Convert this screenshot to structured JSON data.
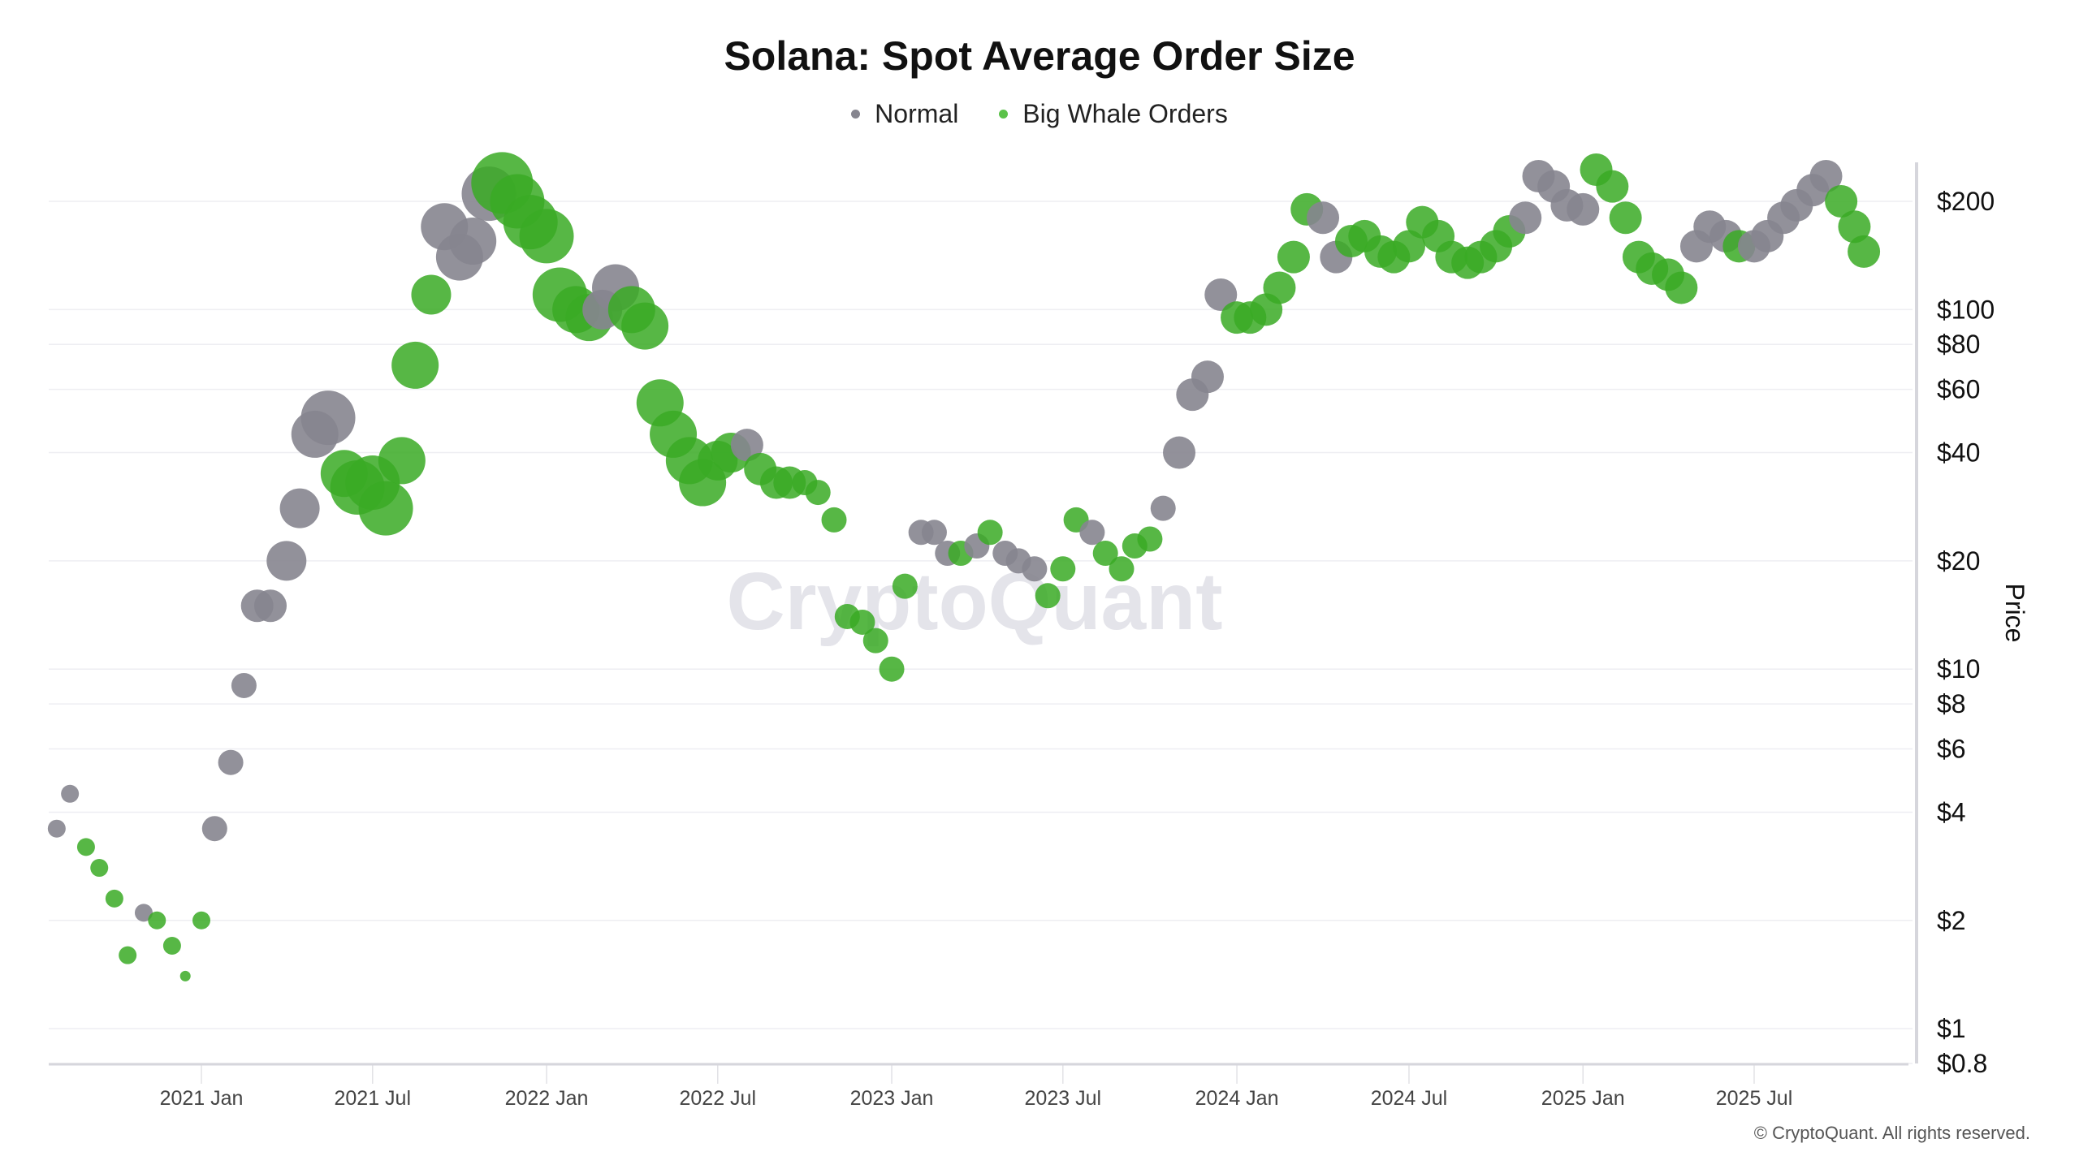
{
  "chart_data": {
    "type": "scatter",
    "title": "Solana: Spot Average Order Size",
    "ylabel": "Price",
    "xlabel": "",
    "yscale": "log",
    "ylim": [
      0.8,
      260
    ],
    "xlim": [
      "2020-07-20",
      "2025-11-05"
    ],
    "grid": true,
    "legend_placement": "top-center",
    "y_ticks": [
      {
        "value": 200,
        "label": "$200"
      },
      {
        "value": 100,
        "label": "$100"
      },
      {
        "value": 80,
        "label": "$80"
      },
      {
        "value": 60,
        "label": "$60"
      },
      {
        "value": 40,
        "label": "$40"
      },
      {
        "value": 20,
        "label": "$20"
      },
      {
        "value": 10,
        "label": "$10"
      },
      {
        "value": 8,
        "label": "$8"
      },
      {
        "value": 6,
        "label": "$6"
      },
      {
        "value": 4,
        "label": "$4"
      },
      {
        "value": 2,
        "label": "$2"
      },
      {
        "value": 1,
        "label": "$1"
      },
      {
        "value": 0.8,
        "label": "$0.8"
      }
    ],
    "x_ticks": [
      {
        "value": "2021-01-01",
        "label": "2021 Jan"
      },
      {
        "value": "2021-07-01",
        "label": "2021 Jul"
      },
      {
        "value": "2022-01-01",
        "label": "2022 Jan"
      },
      {
        "value": "2022-07-01",
        "label": "2022 Jul"
      },
      {
        "value": "2023-01-01",
        "label": "2023 Jan"
      },
      {
        "value": "2023-07-01",
        "label": "2023 Jul"
      },
      {
        "value": "2024-01-01",
        "label": "2024 Jan"
      },
      {
        "value": "2024-07-01",
        "label": "2024 Jul"
      },
      {
        "value": "2025-01-01",
        "label": "2025 Jan"
      },
      {
        "value": "2025-07-01",
        "label": "2025 Jul"
      }
    ],
    "series": [
      {
        "name": "Normal",
        "key": "N",
        "color": "#86858f"
      },
      {
        "name": "Big Whale Orders",
        "key": "W",
        "color": "#3aaa25"
      }
    ],
    "points_columns": [
      "date",
      "price",
      "category",
      "relative_order_size"
    ],
    "points": [
      [
        "2020-08-01",
        3.6,
        "N",
        2
      ],
      [
        "2020-08-15",
        4.5,
        "N",
        2
      ],
      [
        "2020-09-01",
        3.2,
        "W",
        2
      ],
      [
        "2020-09-15",
        2.8,
        "W",
        2
      ],
      [
        "2020-10-01",
        2.3,
        "W",
        2
      ],
      [
        "2020-10-15",
        1.6,
        "W",
        2
      ],
      [
        "2020-11-01",
        2.1,
        "N",
        2
      ],
      [
        "2020-11-15",
        2.0,
        "W",
        2
      ],
      [
        "2020-12-01",
        1.7,
        "W",
        2
      ],
      [
        "2020-12-15",
        1.4,
        "W",
        1
      ],
      [
        "2021-01-01",
        2.0,
        "W",
        2
      ],
      [
        "2021-01-15",
        3.6,
        "N",
        3
      ],
      [
        "2021-02-01",
        5.5,
        "N",
        3
      ],
      [
        "2021-02-15",
        9,
        "N",
        3
      ],
      [
        "2021-03-01",
        15,
        "N",
        4
      ],
      [
        "2021-03-15",
        15,
        "N",
        4
      ],
      [
        "2021-04-01",
        20,
        "N",
        5
      ],
      [
        "2021-04-15",
        28,
        "N",
        5
      ],
      [
        "2021-05-01",
        45,
        "N",
        6
      ],
      [
        "2021-05-15",
        50,
        "N",
        7
      ],
      [
        "2021-06-01",
        35,
        "W",
        6
      ],
      [
        "2021-06-15",
        32,
        "W",
        7
      ],
      [
        "2021-07-01",
        33,
        "W",
        7
      ],
      [
        "2021-07-15",
        28,
        "W",
        7
      ],
      [
        "2021-08-01",
        38,
        "W",
        6
      ],
      [
        "2021-08-15",
        70,
        "W",
        6
      ],
      [
        "2021-09-01",
        110,
        "W",
        5
      ],
      [
        "2021-09-15",
        170,
        "N",
        6
      ],
      [
        "2021-10-01",
        140,
        "N",
        6
      ],
      [
        "2021-10-15",
        155,
        "N",
        6
      ],
      [
        "2021-11-01",
        210,
        "N",
        7
      ],
      [
        "2021-11-15",
        225,
        "W",
        8
      ],
      [
        "2021-12-01",
        200,
        "W",
        7
      ],
      [
        "2021-12-15",
        175,
        "W",
        7
      ],
      [
        "2022-01-01",
        160,
        "W",
        7
      ],
      [
        "2022-01-15",
        110,
        "W",
        7
      ],
      [
        "2022-02-01",
        100,
        "W",
        6
      ],
      [
        "2022-02-15",
        95,
        "W",
        6
      ],
      [
        "2022-03-01",
        100,
        "N",
        5
      ],
      [
        "2022-03-15",
        115,
        "N",
        6
      ],
      [
        "2022-04-01",
        100,
        "W",
        6
      ],
      [
        "2022-04-15",
        90,
        "W",
        6
      ],
      [
        "2022-05-01",
        55,
        "W",
        6
      ],
      [
        "2022-05-15",
        45,
        "W",
        6
      ],
      [
        "2022-06-01",
        38,
        "W",
        6
      ],
      [
        "2022-06-15",
        33,
        "W",
        6
      ],
      [
        "2022-07-01",
        38,
        "W",
        5
      ],
      [
        "2022-07-15",
        40,
        "W",
        5
      ],
      [
        "2022-08-01",
        42,
        "N",
        4
      ],
      [
        "2022-08-15",
        36,
        "W",
        4
      ],
      [
        "2022-09-01",
        33,
        "W",
        4
      ],
      [
        "2022-09-15",
        33,
        "W",
        4
      ],
      [
        "2022-10-01",
        33,
        "W",
        3
      ],
      [
        "2022-10-15",
        31,
        "W",
        3
      ],
      [
        "2022-11-01",
        26,
        "W",
        3
      ],
      [
        "2022-11-15",
        14,
        "W",
        3
      ],
      [
        "2022-12-01",
        13.5,
        "W",
        3
      ],
      [
        "2022-12-15",
        12,
        "W",
        3
      ],
      [
        "2023-01-01",
        10,
        "W",
        3
      ],
      [
        "2023-01-15",
        17,
        "W",
        3
      ],
      [
        "2023-02-01",
        24,
        "N",
        3
      ],
      [
        "2023-02-15",
        24,
        "N",
        3
      ],
      [
        "2023-03-01",
        21,
        "N",
        3
      ],
      [
        "2023-03-15",
        21,
        "W",
        3
      ],
      [
        "2023-04-01",
        22,
        "N",
        3
      ],
      [
        "2023-04-15",
        24,
        "W",
        3
      ],
      [
        "2023-05-01",
        21,
        "N",
        3
      ],
      [
        "2023-05-15",
        20,
        "N",
        3
      ],
      [
        "2023-06-01",
        19,
        "N",
        3
      ],
      [
        "2023-06-15",
        16,
        "W",
        3
      ],
      [
        "2023-07-01",
        19,
        "W",
        3
      ],
      [
        "2023-07-15",
        26,
        "W",
        3
      ],
      [
        "2023-08-01",
        24,
        "N",
        3
      ],
      [
        "2023-08-15",
        21,
        "W",
        3
      ],
      [
        "2023-09-01",
        19,
        "W",
        3
      ],
      [
        "2023-09-15",
        22,
        "W",
        3
      ],
      [
        "2023-10-01",
        23,
        "W",
        3
      ],
      [
        "2023-10-15",
        28,
        "N",
        3
      ],
      [
        "2023-11-01",
        40,
        "N",
        4
      ],
      [
        "2023-11-15",
        58,
        "N",
        4
      ],
      [
        "2023-12-01",
        65,
        "N",
        4
      ],
      [
        "2023-12-15",
        110,
        "N",
        4
      ],
      [
        "2024-01-01",
        95,
        "W",
        4
      ],
      [
        "2024-01-15",
        95,
        "W",
        4
      ],
      [
        "2024-02-01",
        100,
        "W",
        4
      ],
      [
        "2024-02-15",
        115,
        "W",
        4
      ],
      [
        "2024-03-01",
        140,
        "W",
        4
      ],
      [
        "2024-03-15",
        190,
        "W",
        4
      ],
      [
        "2024-04-01",
        180,
        "N",
        4
      ],
      [
        "2024-04-15",
        140,
        "N",
        4
      ],
      [
        "2024-05-01",
        155,
        "W",
        4
      ],
      [
        "2024-05-15",
        160,
        "W",
        4
      ],
      [
        "2024-06-01",
        145,
        "W",
        4
      ],
      [
        "2024-06-15",
        140,
        "W",
        4
      ],
      [
        "2024-07-01",
        150,
        "W",
        4
      ],
      [
        "2024-07-15",
        175,
        "W",
        4
      ],
      [
        "2024-08-01",
        160,
        "W",
        4
      ],
      [
        "2024-08-15",
        140,
        "W",
        4
      ],
      [
        "2024-09-01",
        135,
        "W",
        4
      ],
      [
        "2024-09-15",
        140,
        "W",
        4
      ],
      [
        "2024-10-01",
        150,
        "W",
        4
      ],
      [
        "2024-10-15",
        165,
        "W",
        4
      ],
      [
        "2024-11-01",
        180,
        "N",
        4
      ],
      [
        "2024-11-15",
        235,
        "N",
        4
      ],
      [
        "2024-12-01",
        220,
        "N",
        4
      ],
      [
        "2024-12-15",
        195,
        "N",
        4
      ],
      [
        "2025-01-01",
        190,
        "N",
        4
      ],
      [
        "2025-01-15",
        245,
        "W",
        4
      ],
      [
        "2025-02-01",
        220,
        "W",
        4
      ],
      [
        "2025-02-15",
        180,
        "W",
        4
      ],
      [
        "2025-03-01",
        140,
        "W",
        4
      ],
      [
        "2025-03-15",
        130,
        "W",
        4
      ],
      [
        "2025-04-01",
        125,
        "W",
        4
      ],
      [
        "2025-04-15",
        115,
        "W",
        4
      ],
      [
        "2025-05-01",
        150,
        "N",
        4
      ],
      [
        "2025-05-15",
        170,
        "N",
        4
      ],
      [
        "2025-06-01",
        160,
        "N",
        4
      ],
      [
        "2025-06-15",
        150,
        "W",
        4
      ],
      [
        "2025-07-01",
        150,
        "N",
        4
      ],
      [
        "2025-07-15",
        160,
        "N",
        4
      ],
      [
        "2025-08-01",
        180,
        "N",
        4
      ],
      [
        "2025-08-15",
        195,
        "N",
        4
      ],
      [
        "2025-09-01",
        215,
        "N",
        4
      ],
      [
        "2025-09-15",
        235,
        "N",
        4
      ],
      [
        "2025-10-01",
        200,
        "W",
        4
      ],
      [
        "2025-10-15",
        170,
        "W",
        4
      ],
      [
        "2025-10-25",
        145,
        "W",
        4
      ]
    ],
    "watermark": "CryptoQuant"
  },
  "legend": {
    "normal": "Normal",
    "whale": "Big Whale Orders"
  },
  "footer": {
    "copyright": "© CryptoQuant. All rights reserved."
  }
}
